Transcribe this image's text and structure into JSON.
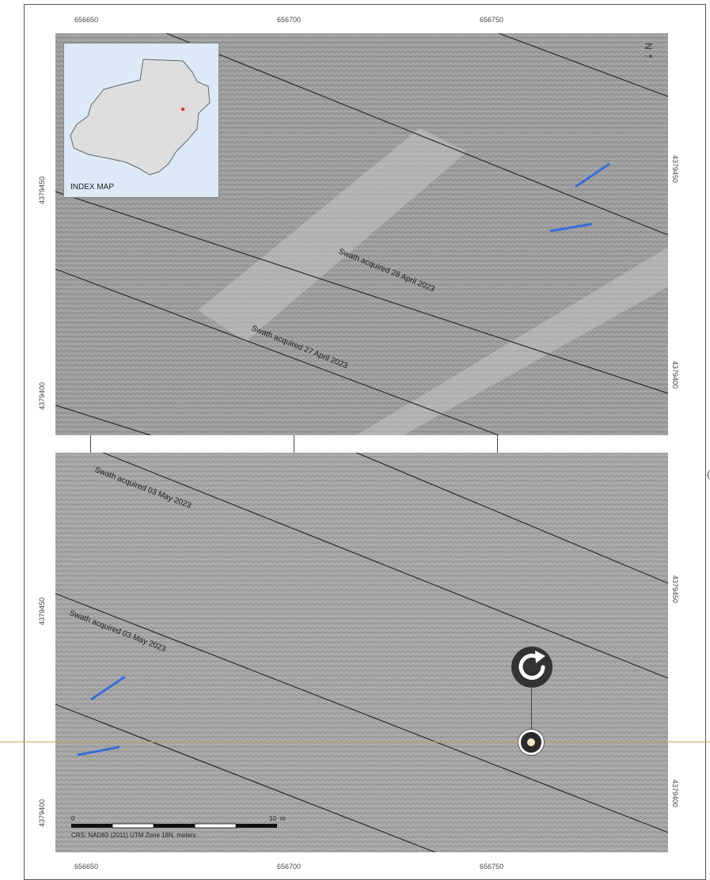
{
  "map": {
    "x_ticks_top": [
      "656650",
      "656700",
      "656750"
    ],
    "x_ticks_bottom": [
      "656650",
      "656700",
      "656750"
    ],
    "y_ticks_top_panel": [
      "4379450",
      "4379400"
    ],
    "y_ticks_bottom_panel": [
      "4379450",
      "4379400"
    ],
    "index_map_label": "INDEX MAP",
    "north_label": "N",
    "swath_labels": [
      "Swath acquired 28 April 2023",
      "Swath acquired 27 April 2023",
      "Swath acquired 03 May 2023",
      "Swath acquired 03 May 2023"
    ],
    "scale_start": "0",
    "scale_end": "10",
    "scale_units": "m",
    "crs_label": "CRS: NAD83 (2011) UTM Zone 18N, meters"
  },
  "colors": {
    "seafloor": "#9a9a9a",
    "swath_edge": "#2e2e2e",
    "feature_marker": "#3a6fd8",
    "index_map_water": "#dbeaf6",
    "index_map_land": "#dddddd",
    "site_marker": "#e03030",
    "guide_line": "#c9a94b"
  },
  "icons": {
    "rotate": "rotate-clockwise-icon",
    "move": "move-handle-icon",
    "north": "north-arrow-icon"
  }
}
